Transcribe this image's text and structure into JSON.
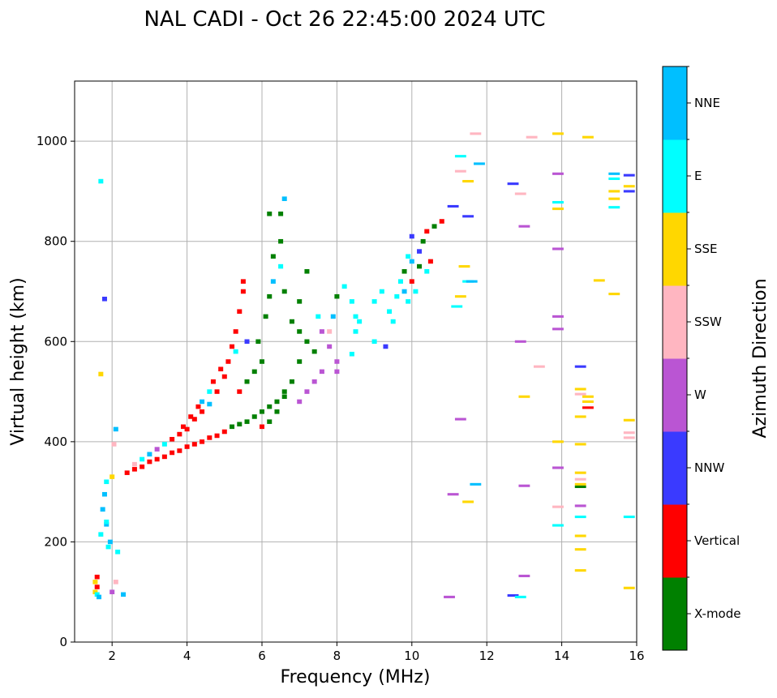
{
  "chart_data": {
    "type": "scatter",
    "title": "NAL CADI - Oct 26 22:45:00 2024 UTC",
    "xlabel": "Frequency (MHz)",
    "ylabel": "Virtual height (km)",
    "xlim": [
      1,
      16
    ],
    "ylim": [
      0,
      1120
    ],
    "xticks": [
      2,
      4,
      6,
      8,
      10,
      12,
      14,
      16
    ],
    "yticks": [
      0,
      200,
      400,
      600,
      800,
      1000
    ],
    "grid": true,
    "colorbar": {
      "label": "Azimuth Direction",
      "categories": [
        "X-mode",
        "Vertical",
        "NNW",
        "W",
        "SSW",
        "SSE",
        "E",
        "NNE"
      ],
      "colors": [
        "#008000",
        "#ff0000",
        "#3a3aff",
        "#ba55d3",
        "#ffb6c1",
        "#ffd700",
        "#00ffff",
        "#00bfff"
      ]
    },
    "points_format": [
      "frequency_mhz",
      "height_km",
      "category_index"
    ],
    "points": [
      [
        1.55,
        100,
        5
      ],
      [
        1.6,
        110,
        1
      ],
      [
        1.6,
        95,
        6
      ],
      [
        1.65,
        90,
        7
      ],
      [
        1.6,
        130,
        1
      ],
      [
        1.55,
        120,
        5
      ],
      [
        1.7,
        215,
        6
      ],
      [
        1.75,
        265,
        7
      ],
      [
        1.8,
        295,
        7
      ],
      [
        1.85,
        320,
        6
      ],
      [
        1.85,
        235,
        7
      ],
      [
        1.8,
        685,
        2
      ],
      [
        1.85,
        240,
        6
      ],
      [
        1.9,
        190,
        6
      ],
      [
        1.95,
        200,
        7
      ],
      [
        2.0,
        330,
        5
      ],
      [
        2.05,
        395,
        4
      ],
      [
        2.1,
        425,
        7
      ],
      [
        1.7,
        920,
        6
      ],
      [
        1.7,
        535,
        5
      ],
      [
        2.3,
        95,
        7
      ],
      [
        2.1,
        120,
        4
      ],
      [
        2.15,
        180,
        6
      ],
      [
        2.0,
        100,
        3
      ],
      [
        2.4,
        338,
        1
      ],
      [
        2.6,
        345,
        1
      ],
      [
        2.8,
        350,
        1
      ],
      [
        3.0,
        360,
        1
      ],
      [
        3.2,
        365,
        1
      ],
      [
        3.4,
        370,
        1
      ],
      [
        3.6,
        378,
        1
      ],
      [
        3.8,
        382,
        1
      ],
      [
        4.0,
        390,
        1
      ],
      [
        4.2,
        395,
        1
      ],
      [
        4.4,
        400,
        1
      ],
      [
        4.6,
        408,
        1
      ],
      [
        4.8,
        412,
        1
      ],
      [
        5.0,
        420,
        1
      ],
      [
        5.2,
        430,
        0
      ],
      [
        5.4,
        435,
        0
      ],
      [
        5.6,
        440,
        0
      ],
      [
        5.8,
        450,
        0
      ],
      [
        6.0,
        460,
        0
      ],
      [
        6.2,
        470,
        0
      ],
      [
        6.4,
        480,
        0
      ],
      [
        6.6,
        490,
        0
      ],
      [
        2.6,
        355,
        4
      ],
      [
        2.8,
        365,
        6
      ],
      [
        3.0,
        375,
        7
      ],
      [
        3.2,
        385,
        3
      ],
      [
        3.4,
        395,
        6
      ],
      [
        3.6,
        405,
        1
      ],
      [
        3.8,
        415,
        1
      ],
      [
        4.0,
        425,
        1
      ],
      [
        4.2,
        445,
        1
      ],
      [
        4.4,
        460,
        1
      ],
      [
        4.6,
        475,
        7
      ],
      [
        4.8,
        500,
        1
      ],
      [
        5.0,
        530,
        1
      ],
      [
        5.1,
        560,
        1
      ],
      [
        5.2,
        590,
        1
      ],
      [
        5.3,
        620,
        1
      ],
      [
        5.4,
        660,
        1
      ],
      [
        5.5,
        700,
        1
      ],
      [
        5.5,
        720,
        1
      ],
      [
        4.6,
        500,
        6
      ],
      [
        4.4,
        480,
        7
      ],
      [
        3.9,
        430,
        1
      ],
      [
        4.1,
        450,
        1
      ],
      [
        4.3,
        470,
        1
      ],
      [
        4.7,
        520,
        1
      ],
      [
        4.9,
        545,
        1
      ],
      [
        5.3,
        580,
        6
      ],
      [
        5.6,
        600,
        2
      ],
      [
        5.4,
        500,
        1
      ],
      [
        5.6,
        520,
        0
      ],
      [
        5.8,
        540,
        0
      ],
      [
        6.0,
        560,
        0
      ],
      [
        5.9,
        600,
        0
      ],
      [
        6.1,
        650,
        0
      ],
      [
        6.2,
        690,
        0
      ],
      [
        6.3,
        720,
        7
      ],
      [
        6.3,
        770,
        0
      ],
      [
        6.5,
        750,
        6
      ],
      [
        6.5,
        800,
        0
      ],
      [
        6.6,
        885,
        7
      ],
      [
        6.2,
        855,
        0
      ],
      [
        6.5,
        855,
        0
      ],
      [
        6.6,
        700,
        0
      ],
      [
        6.8,
        640,
        0
      ],
      [
        7.0,
        620,
        0
      ],
      [
        7.2,
        600,
        0
      ],
      [
        7.0,
        560,
        0
      ],
      [
        6.8,
        520,
        0
      ],
      [
        6.6,
        500,
        0
      ],
      [
        6.4,
        460,
        0
      ],
      [
        6.2,
        440,
        0
      ],
      [
        6.0,
        430,
        1
      ],
      [
        7.4,
        580,
        0
      ],
      [
        7.2,
        740,
        0
      ],
      [
        7.0,
        680,
        0
      ],
      [
        7.5,
        650,
        6
      ],
      [
        7.6,
        620,
        3
      ],
      [
        7.8,
        590,
        3
      ],
      [
        8.0,
        560,
        3
      ],
      [
        8.0,
        540,
        3
      ],
      [
        7.6,
        540,
        3
      ],
      [
        7.4,
        520,
        3
      ],
      [
        7.2,
        500,
        3
      ],
      [
        7.0,
        480,
        3
      ],
      [
        7.8,
        620,
        4
      ],
      [
        7.9,
        650,
        7
      ],
      [
        8.0,
        690,
        0
      ],
      [
        8.2,
        710,
        6
      ],
      [
        8.4,
        680,
        6
      ],
      [
        8.5,
        650,
        6
      ],
      [
        8.5,
        620,
        6
      ],
      [
        8.4,
        575,
        6
      ],
      [
        8.6,
        640,
        6
      ],
      [
        9.0,
        600,
        6
      ],
      [
        9.0,
        680,
        6
      ],
      [
        9.2,
        700,
        6
      ],
      [
        9.4,
        660,
        6
      ],
      [
        9.5,
        640,
        6
      ],
      [
        9.6,
        690,
        6
      ],
      [
        9.8,
        700,
        7
      ],
      [
        9.8,
        740,
        0
      ],
      [
        10.0,
        760,
        7
      ],
      [
        10.0,
        720,
        1
      ],
      [
        10.2,
        750,
        0
      ],
      [
        10.2,
        780,
        2
      ],
      [
        10.3,
        800,
        0
      ],
      [
        10.4,
        820,
        1
      ],
      [
        10.6,
        830,
        0
      ],
      [
        10.8,
        840,
        1
      ],
      [
        10.0,
        810,
        2
      ],
      [
        9.9,
        770,
        6
      ],
      [
        9.7,
        720,
        6
      ],
      [
        9.3,
        590,
        2
      ],
      [
        9.9,
        680,
        6
      ],
      [
        10.4,
        740,
        6
      ],
      [
        10.1,
        700,
        6
      ],
      [
        10.5,
        760,
        1
      ],
      [
        11.2,
        670,
        6
      ],
      [
        11.3,
        970,
        6
      ],
      [
        11.3,
        940,
        4
      ],
      [
        11.5,
        920,
        5
      ],
      [
        11.1,
        870,
        2
      ],
      [
        11.5,
        850,
        2
      ],
      [
        11.7,
        1015,
        4
      ],
      [
        11.8,
        955,
        7
      ],
      [
        11.4,
        750,
        5
      ],
      [
        11.5,
        720,
        6
      ],
      [
        11.6,
        720,
        7
      ],
      [
        11.3,
        690,
        5
      ],
      [
        11.3,
        445,
        3
      ],
      [
        11.1,
        295,
        3
      ],
      [
        11.5,
        280,
        5
      ],
      [
        11.7,
        315,
        7
      ],
      [
        11.0,
        90,
        3
      ],
      [
        12.7,
        915,
        2
      ],
      [
        12.9,
        895,
        4
      ],
      [
        13.0,
        830,
        3
      ],
      [
        12.9,
        600,
        3
      ],
      [
        13.0,
        490,
        5
      ],
      [
        13.4,
        550,
        4
      ],
      [
        13.0,
        312,
        3
      ],
      [
        13.0,
        132,
        3
      ],
      [
        12.7,
        93,
        2
      ],
      [
        12.9,
        90,
        6
      ],
      [
        13.2,
        1008,
        4
      ],
      [
        13.9,
        1015,
        5
      ],
      [
        13.9,
        935,
        3
      ],
      [
        13.9,
        878,
        6
      ],
      [
        13.9,
        865,
        5
      ],
      [
        13.9,
        785,
        3
      ],
      [
        13.9,
        650,
        3
      ],
      [
        13.9,
        625,
        3
      ],
      [
        13.9,
        400,
        5
      ],
      [
        13.9,
        348,
        3
      ],
      [
        13.9,
        270,
        4
      ],
      [
        13.9,
        233,
        6
      ],
      [
        14.5,
        550,
        2
      ],
      [
        14.5,
        505,
        5
      ],
      [
        14.5,
        495,
        4
      ],
      [
        14.7,
        490,
        5
      ],
      [
        14.7,
        480,
        5
      ],
      [
        14.7,
        468,
        1
      ],
      [
        14.5,
        450,
        5
      ],
      [
        14.5,
        395,
        5
      ],
      [
        14.5,
        338,
        5
      ],
      [
        14.5,
        325,
        4
      ],
      [
        14.5,
        315,
        5
      ],
      [
        14.5,
        310,
        0
      ],
      [
        14.5,
        272,
        3
      ],
      [
        14.5,
        250,
        6
      ],
      [
        14.5,
        212,
        5
      ],
      [
        14.5,
        185,
        5
      ],
      [
        14.5,
        143,
        5
      ],
      [
        14.7,
        1008,
        5
      ],
      [
        15.0,
        722,
        5
      ],
      [
        15.4,
        695,
        5
      ],
      [
        15.4,
        935,
        7
      ],
      [
        15.4,
        925,
        6
      ],
      [
        15.4,
        900,
        5
      ],
      [
        15.4,
        885,
        5
      ],
      [
        15.4,
        868,
        6
      ],
      [
        15.8,
        932,
        2
      ],
      [
        15.8,
        910,
        5
      ],
      [
        15.8,
        900,
        2
      ],
      [
        15.8,
        443,
        5
      ],
      [
        15.8,
        418,
        4
      ],
      [
        15.8,
        408,
        4
      ],
      [
        15.8,
        250,
        6
      ],
      [
        15.8,
        108,
        5
      ]
    ]
  }
}
